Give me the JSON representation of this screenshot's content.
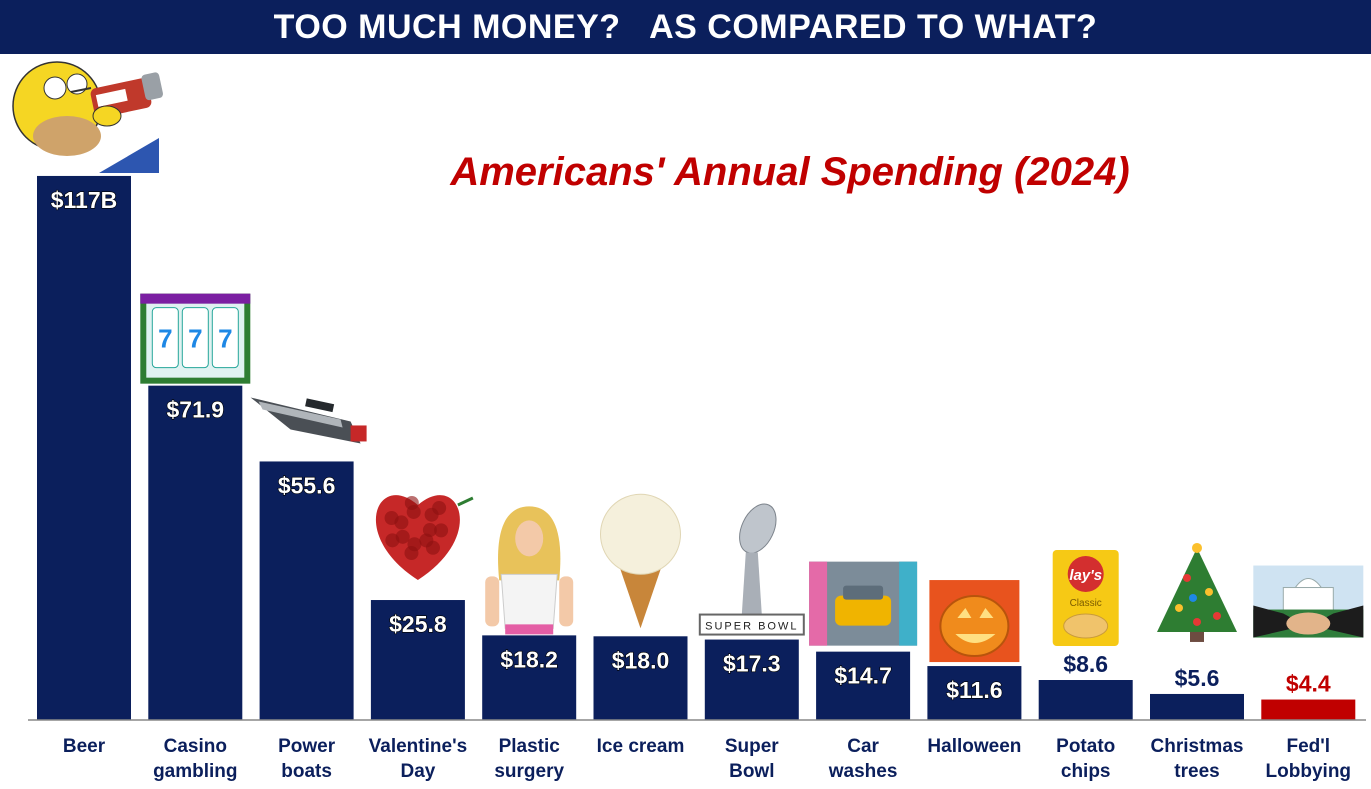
{
  "banner": "TOO MUCH MONEY?   AS COMPARED TO WHAT?",
  "colors": {
    "bar": "#0b1f5c",
    "highlight": "#c00000",
    "banner": "#0b1f5c"
  },
  "chart_data": {
    "type": "bar",
    "title": "Americans' Annual Spending (2024)",
    "categories": [
      [
        "Beer"
      ],
      [
        "Casino",
        "gambling"
      ],
      [
        "Power",
        "boats"
      ],
      [
        "Valentine's",
        "Day"
      ],
      [
        "Plastic",
        "surgery"
      ],
      [
        "Ice cream"
      ],
      [
        "Super",
        "Bowl"
      ],
      [
        "Car",
        "washes"
      ],
      [
        "Halloween"
      ],
      [
        "Potato",
        "chips"
      ],
      [
        "Christmas",
        "trees"
      ],
      [
        "Fed'l",
        "Lobbying"
      ]
    ],
    "values": [
      117,
      71.9,
      55.6,
      25.8,
      18.2,
      18.0,
      17.3,
      14.7,
      11.6,
      8.6,
      5.6,
      4.4
    ],
    "data_labels": [
      "$117B",
      "$71.9",
      "$55.6",
      "$25.8",
      "$18.2",
      "$18.0",
      "$17.3",
      "$14.7",
      "$11.6",
      "$8.6",
      "$5.6",
      "$4.4"
    ],
    "highlight_index": 11,
    "illustrations": [
      "homer-simpson-beer-icon",
      "slot-machine-icon",
      "power-boat-icon",
      "rose-heart-icon",
      "doll-icon",
      "ice-cream-cone-icon",
      "super-bowl-trophy-icon",
      "car-wash-icon",
      "jack-o-lantern-icon",
      "potato-chips-bag-icon",
      "christmas-tree-icon",
      "capitol-handshake-icon"
    ],
    "trophy_text": "SUPER BOWL",
    "chips_brand": "lay's",
    "chips_flavor": "Classic",
    "unit": "billions of dollars",
    "xlabel": "",
    "ylabel": ""
  }
}
